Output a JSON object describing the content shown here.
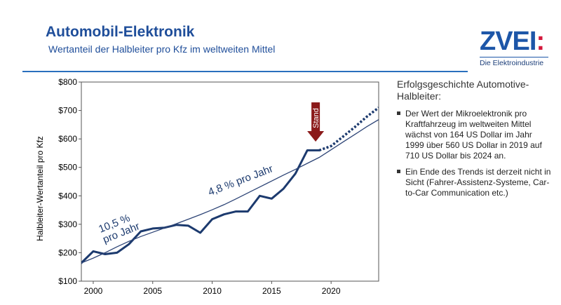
{
  "header": {
    "title": "Automobil-Elektronik",
    "subtitle": "Wertanteil der Halbleiter pro Kfz im weltweiten Mittel"
  },
  "logo": {
    "mark": "ZVEI",
    "mark_colon": ":",
    "tagline": "Die Elektroindustrie"
  },
  "chart_data": {
    "type": "line",
    "ylabel": "Halbleiter-Wertanteil pro Kfz",
    "xlabel": "",
    "ylim": [
      100,
      800
    ],
    "xlim": [
      1999,
      2024
    ],
    "y_ticks": [
      "$800",
      "$700",
      "$600",
      "$500",
      "$400",
      "$300",
      "$200",
      "$100"
    ],
    "y_tick_values": [
      800,
      700,
      600,
      500,
      400,
      300,
      200,
      100
    ],
    "x_ticks": [
      "2000",
      "2005",
      "2010",
      "2015",
      "2020"
    ],
    "x_tick_values": [
      2000,
      2005,
      2010,
      2015,
      2020
    ],
    "series": [
      {
        "name": "actual",
        "style": "solid",
        "x": [
          1999,
          2000,
          2001,
          2002,
          2003,
          2004,
          2005,
          2006,
          2007,
          2008,
          2009,
          2010,
          2011,
          2012,
          2013,
          2014,
          2015,
          2016,
          2017,
          2018,
          2019
        ],
        "values": [
          164,
          205,
          195,
          200,
          230,
          275,
          285,
          288,
          298,
          295,
          270,
          318,
          335,
          345,
          345,
          400,
          390,
          425,
          478,
          560,
          560
        ]
      },
      {
        "name": "forecast",
        "style": "dotted",
        "x": [
          2019,
          2020,
          2021,
          2022,
          2023,
          2024
        ],
        "values": [
          560,
          575,
          608,
          642,
          678,
          710
        ]
      },
      {
        "name": "trend",
        "style": "thin",
        "x": [
          1999,
          2000,
          2001,
          2002,
          2003,
          2004,
          2005,
          2006,
          2007,
          2008,
          2009,
          2010,
          2011,
          2012,
          2013,
          2014,
          2015,
          2016,
          2017,
          2018,
          2019,
          2020,
          2021,
          2022,
          2023,
          2024
        ],
        "values": [
          164,
          181,
          200,
          221,
          240,
          257,
          272,
          287,
          302,
          318,
          334,
          351,
          369,
          389,
          410,
          431,
          452,
          473,
          493,
          514,
          535,
          562,
          589,
          616,
          643,
          668
        ]
      }
    ],
    "annotations": [
      {
        "text_lines": [
          "10,5 %",
          "pro Jahr"
        ],
        "x": 2000.6,
        "y": 270,
        "rotate": -22
      },
      {
        "text_lines": [
          "4,8 % pro Jahr"
        ],
        "x": 2009.8,
        "y": 400,
        "rotate": -21
      }
    ],
    "marker": {
      "label": "Stand",
      "x": 2018.7,
      "color": "#8b1a1a"
    }
  },
  "panel": {
    "title": "Erfolgsgeschichte Automotive-Halbleiter:",
    "bullets": [
      "Der Wert der Mikroelektronik pro Kraftfahrzeug im weltweiten Mittel wächst von 164 US Dollar im Jahr 1999 über 560 US Dollar in 2019 auf 710 US Dollar bis 2024 an.",
      "Ein Ende des Trends ist derzeit nicht in Sicht (Fahrer-Assistenz-Systeme, Car-to-Car Communication etc.)"
    ]
  },
  "colors": {
    "title": "#1f4e9a",
    "line_main": "#1c3a6e",
    "line_trend": "#2d4476",
    "marker": "#8b1a1a",
    "rule": "#2a6fbd",
    "logo": "#1d56a8",
    "logo_accent": "#d4183c"
  }
}
